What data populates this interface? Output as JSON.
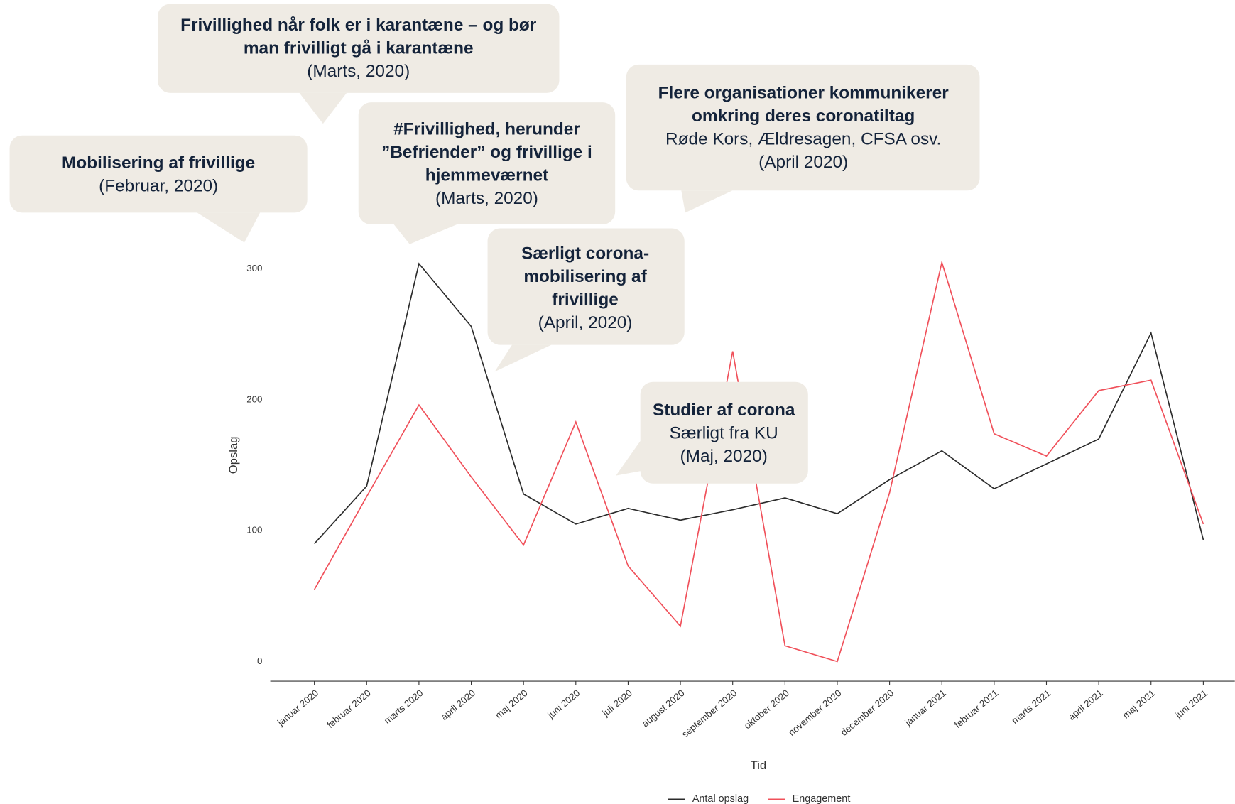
{
  "chart_data": {
    "type": "line",
    "x_label": "Tid",
    "y_label": "Opslag",
    "categories": [
      "januar 2020",
      "februar 2020",
      "marts 2020",
      "april 2020",
      "maj 2020",
      "juni 2020",
      "juli 2020",
      "august 2020",
      "september 2020",
      "oktober 2020",
      "november 2020",
      "december 2020",
      "januar 2021",
      "februar 2021",
      "marts 2021",
      "april 2021",
      "maj 2021",
      "juni 2021"
    ],
    "series": [
      {
        "name": "Antal opslag",
        "color": "#2b2b2b",
        "values": [
          90,
          134,
          304,
          256,
          128,
          105,
          117,
          108,
          116,
          125,
          113,
          139,
          161,
          132,
          151,
          170,
          251,
          93
        ]
      },
      {
        "name": "Engagement",
        "color": "#f0505a",
        "values": [
          55,
          126,
          196,
          141,
          89,
          183,
          73,
          27,
          237,
          12,
          0,
          129,
          305,
          174,
          157,
          207,
          215,
          105
        ]
      }
    ],
    "ylim": [
      -15,
      315
    ],
    "yticks": [
      0,
      100,
      200,
      300
    ],
    "grid": false,
    "legend": "bottom",
    "annotations": [
      {
        "bold": [
          "Frivillighed når folk er i karantæne – og bør",
          "man frivilligt gå i karantæne"
        ],
        "text": [
          "(Marts, 2020)"
        ]
      },
      {
        "bold": [
          "Mobilisering af frivillige"
        ],
        "text": [
          "(Februar, 2020)"
        ]
      },
      {
        "bold": [
          "#Frivillighed, herunder",
          "”Befriender” og frivillige i",
          "hjemmeværnet"
        ],
        "text": [
          "(Marts, 2020)"
        ]
      },
      {
        "bold": [
          "Flere organisationer kommunikerer",
          "omkring deres coronatiltag"
        ],
        "text": [
          "Røde Kors, Ældresagen, CFSA osv.",
          "(April 2020)"
        ]
      },
      {
        "bold": [
          "Særligt corona-",
          "mobilisering af",
          "frivillige"
        ],
        "text": [
          "(April, 2020)"
        ]
      },
      {
        "bold": [
          "Studier af corona"
        ],
        "text": [
          "Særligt fra KU",
          "(Maj, 2020)"
        ]
      }
    ]
  }
}
